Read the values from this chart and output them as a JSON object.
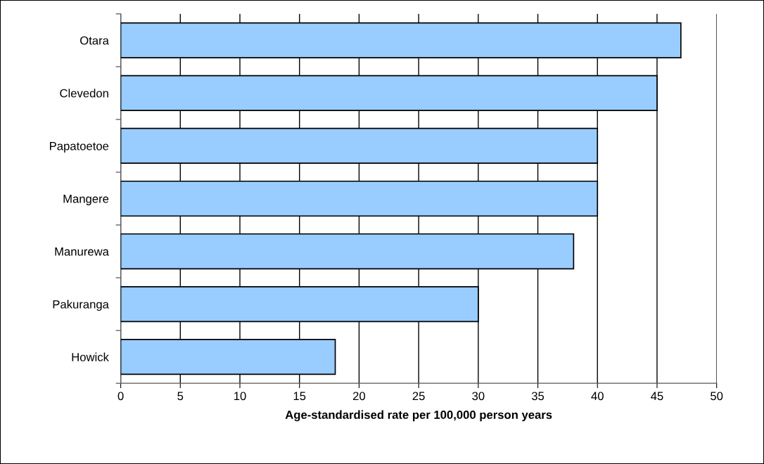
{
  "chart_data": {
    "type": "bar",
    "orientation": "horizontal",
    "categories": [
      "Otara",
      "Clevedon",
      "Papatoetoe",
      "Mangere",
      "Manurewa",
      "Pakuranga",
      "Howick"
    ],
    "values": [
      47,
      45,
      40,
      40,
      38,
      30,
      18
    ],
    "color": "#99ccff",
    "xlabel": "Age-standardised rate per 100,000 person years",
    "xlim": [
      0,
      50
    ],
    "xticks": [
      0,
      5,
      10,
      15,
      20,
      25,
      30,
      35,
      40,
      45,
      50
    ],
    "grid": "x"
  }
}
